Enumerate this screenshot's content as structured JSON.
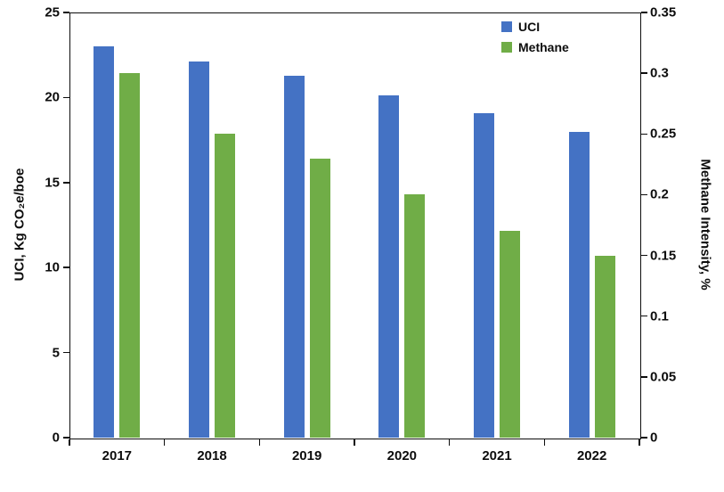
{
  "chart_data": {
    "type": "bar",
    "title": "",
    "categories": [
      "2017",
      "2018",
      "2019",
      "2020",
      "2021",
      "2022"
    ],
    "series": [
      {
        "name": "UCI",
        "axis": "left",
        "color": "#4472C4",
        "values": [
          23.0,
          22.1,
          21.3,
          20.1,
          19.1,
          18.0
        ]
      },
      {
        "name": "Methane",
        "axis": "right",
        "color": "#70AD47",
        "values": [
          0.3,
          0.25,
          0.23,
          0.2,
          0.17,
          0.15
        ]
      }
    ],
    "left_axis": {
      "label": "UCI, Kg CO₂e/boe",
      "min": 0,
      "max": 25,
      "ticks": [
        "0",
        "5",
        "10",
        "15",
        "20",
        "25"
      ]
    },
    "right_axis": {
      "label": "Methane Intensity, %",
      "min": 0,
      "max": 0.35,
      "ticks": [
        "0",
        "0.05",
        "0.1",
        "0.15",
        "0.2",
        "0.25",
        "0.3",
        "0.35"
      ]
    },
    "legend": {
      "position": "top-right"
    },
    "grid": false
  }
}
